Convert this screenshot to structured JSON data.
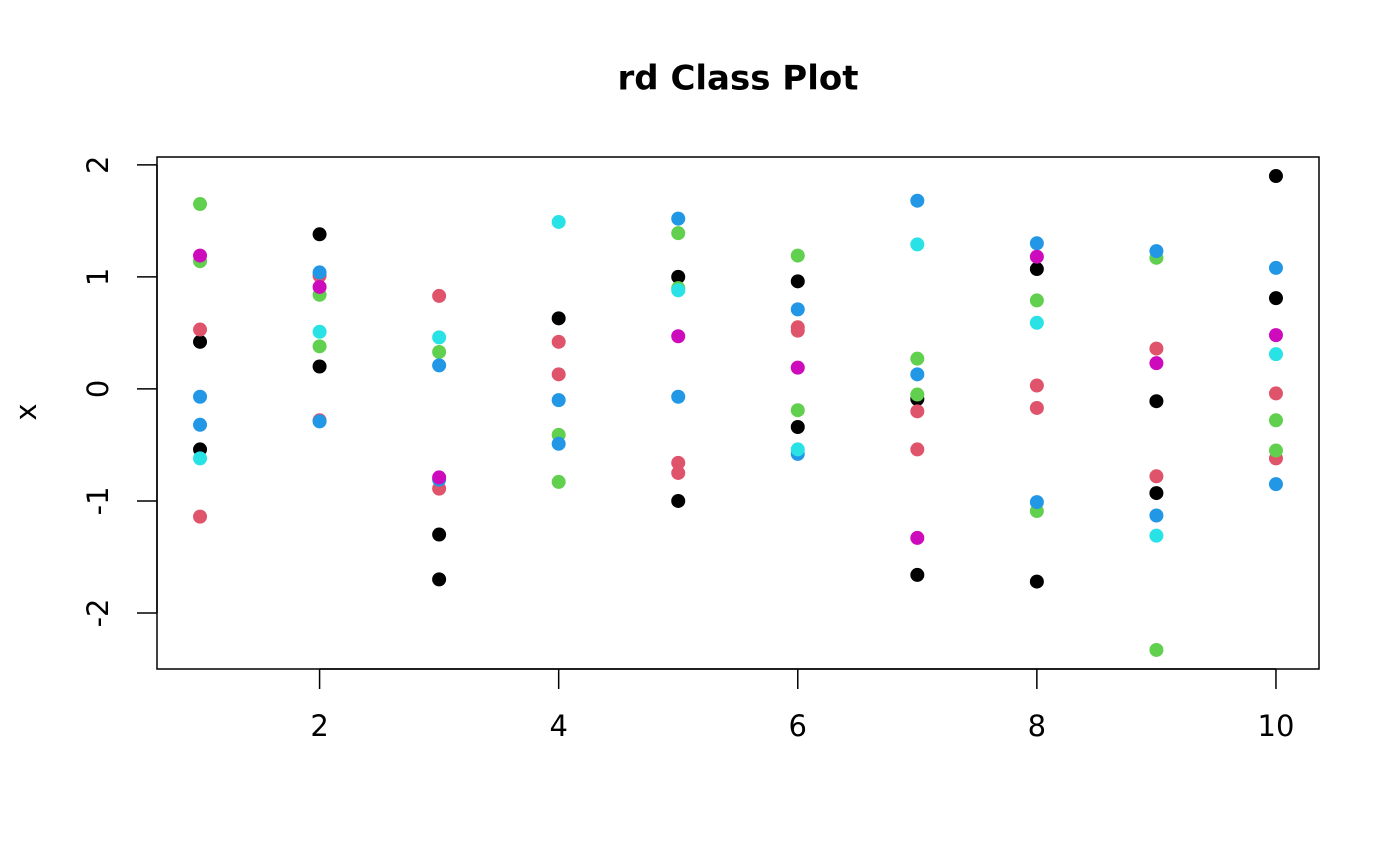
{
  "chart_data": {
    "type": "scatter",
    "title": "rd Class Plot",
    "y_label": "x",
    "xlim": [
      0.64,
      10.36
    ],
    "ylim": [
      -2.5,
      2.07
    ],
    "xticks": [
      2,
      4,
      6,
      8,
      10
    ],
    "yticks": [
      -2,
      -1,
      0,
      1,
      2
    ],
    "series": [
      {
        "color": "#000000",
        "x": [
          1,
          1,
          2,
          2,
          3,
          3,
          4,
          5,
          5,
          6,
          6,
          7,
          7,
          8,
          8,
          9,
          9,
          10,
          10
        ],
        "values": [
          0.42,
          -0.54,
          1.38,
          0.2,
          -1.3,
          -1.7,
          0.63,
          1.0,
          -1.0,
          0.96,
          -0.34,
          -0.09,
          -1.66,
          1.07,
          -1.72,
          -0.11,
          -0.93,
          1.9,
          0.81
        ]
      },
      {
        "color": "#DF536B",
        "x": [
          1,
          1,
          2,
          2,
          3,
          3,
          4,
          4,
          5,
          5,
          6,
          6,
          7,
          7,
          8,
          8,
          9,
          9,
          10,
          10
        ],
        "values": [
          0.53,
          -1.14,
          1.01,
          -0.28,
          0.83,
          -0.89,
          0.42,
          0.13,
          -0.66,
          -0.75,
          0.55,
          0.52,
          -0.2,
          -0.54,
          0.03,
          -0.17,
          0.36,
          -0.78,
          -0.04,
          -0.62
        ]
      },
      {
        "color": "#61D04F",
        "x": [
          1,
          1,
          2,
          2,
          3,
          4,
          4,
          5,
          5,
          6,
          6,
          7,
          7,
          8,
          8,
          9,
          9,
          10,
          10
        ],
        "values": [
          1.65,
          1.14,
          0.84,
          0.38,
          0.33,
          -0.41,
          -0.83,
          1.39,
          0.9,
          1.19,
          -0.19,
          0.27,
          -0.05,
          0.79,
          -1.09,
          1.17,
          -2.33,
          -0.28,
          -0.55
        ]
      },
      {
        "color": "#2297E6",
        "x": [
          1,
          1,
          2,
          2,
          3,
          3,
          4,
          4,
          5,
          5,
          6,
          6,
          7,
          7,
          8,
          8,
          9,
          9,
          10,
          10
        ],
        "values": [
          -0.07,
          -0.32,
          1.04,
          -0.29,
          0.21,
          -0.81,
          -0.1,
          -0.49,
          1.52,
          -0.07,
          0.71,
          -0.58,
          1.68,
          0.13,
          1.3,
          -1.01,
          1.23,
          -1.13,
          1.08,
          -0.85
        ]
      },
      {
        "color": "#28E2E5",
        "x": [
          1,
          2,
          3,
          4,
          5,
          6,
          7,
          8,
          9,
          10
        ],
        "values": [
          -0.62,
          0.51,
          0.46,
          1.49,
          0.88,
          -0.54,
          1.29,
          0.59,
          -1.31,
          0.31
        ]
      },
      {
        "color": "#CD0BBC",
        "x": [
          1,
          2,
          3,
          5,
          6,
          7,
          8,
          9,
          10
        ],
        "values": [
          1.19,
          0.91,
          -0.79,
          0.47,
          0.19,
          -1.33,
          1.18,
          0.23,
          0.48
        ]
      }
    ]
  }
}
